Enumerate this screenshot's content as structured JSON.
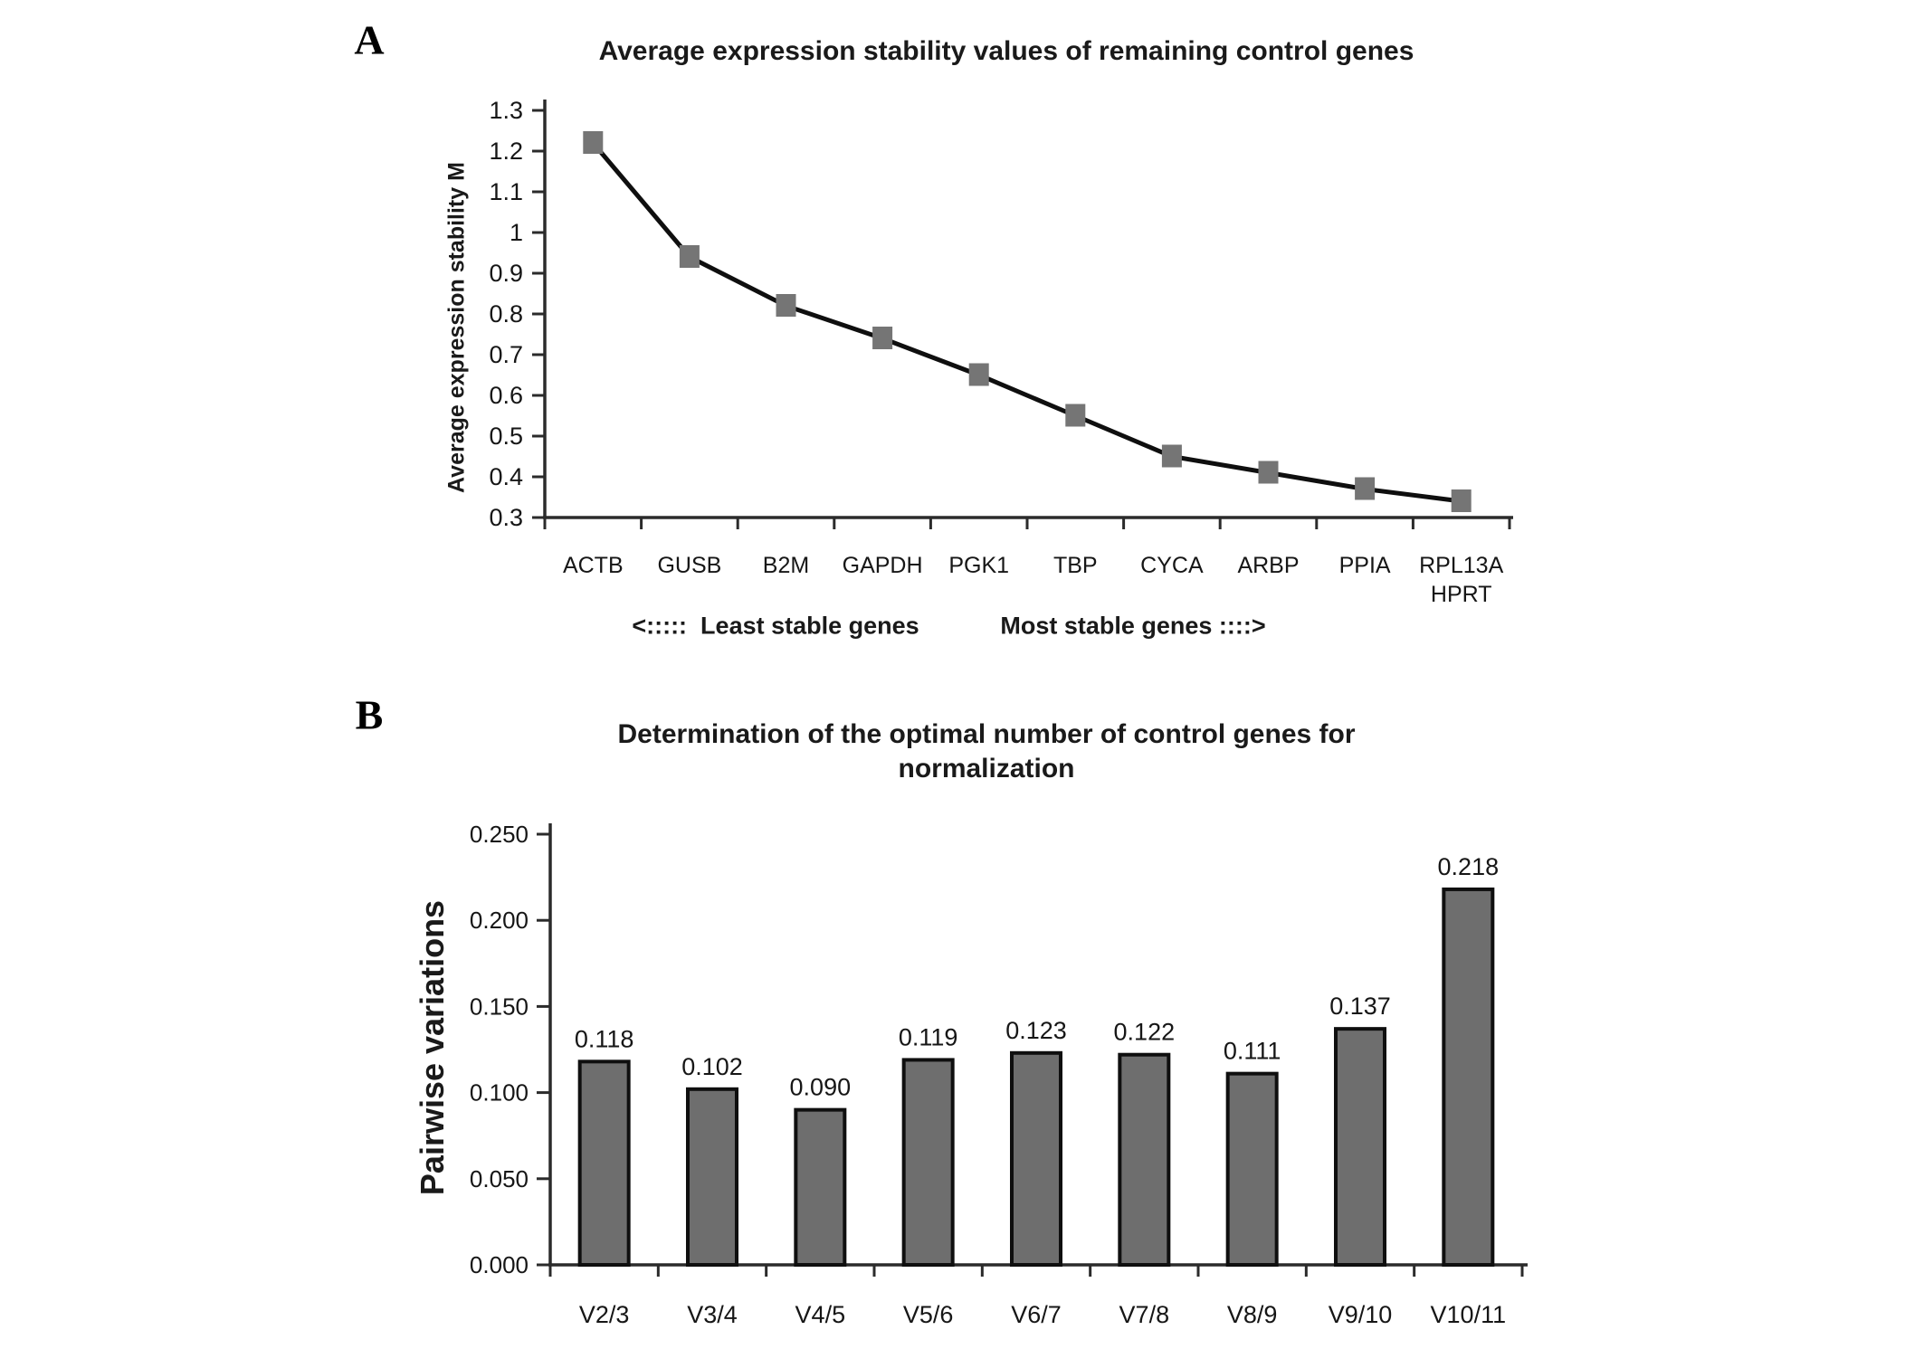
{
  "figure": {
    "panel_labels": [
      "A",
      "B"
    ]
  },
  "chart_data": [
    {
      "id": "expression-stability",
      "type": "line",
      "title": "Average expression stability values of remaining control genes",
      "xlabel": "",
      "ylabel": "Average expression stability M",
      "categories": [
        "ACTB",
        "GUSB",
        "B2M",
        "GAPDH",
        "PGK1",
        "TBP",
        "CYCA",
        "ARBP",
        "PPIA",
        "RPL13A"
      ],
      "categories_line2": [
        "",
        "",
        "",
        "",
        "",
        "",
        "",
        "",
        "",
        "HPRT"
      ],
      "values": [
        1.22,
        0.94,
        0.82,
        0.74,
        0.65,
        0.55,
        0.45,
        0.41,
        0.37,
        0.34
      ],
      "ylim": [
        0.3,
        1.3
      ],
      "ytick_labels": [
        "1.3",
        "1.2",
        "1.1",
        "1",
        "0.9",
        "0.8",
        "0.7",
        "0.6",
        "0.5",
        "0.4",
        "0.3"
      ],
      "grid": false,
      "legend": "none",
      "marker": "square",
      "marker_color": "#757575",
      "line_color": "#0f0f0f",
      "annotations": [
        "<:::::  Least stable genes",
        "Most stable genes ::::>"
      ]
    },
    {
      "id": "pairwise-variations",
      "type": "bar",
      "title": "Determination of the optimal number of control genes for normalization",
      "title_lines": [
        "Determination of the optimal number of control genes for",
        "normalization"
      ],
      "xlabel": "",
      "ylabel": "Pairwise variations",
      "categories": [
        "V2/3",
        "V3/4",
        "V4/5",
        "V5/6",
        "V6/7",
        "V7/8",
        "V8/9",
        "V9/10",
        "V10/11"
      ],
      "values": [
        0.118,
        0.102,
        0.09,
        0.119,
        0.123,
        0.122,
        0.111,
        0.137,
        0.218
      ],
      "value_labels": [
        "0.118",
        "0.102",
        "0.090",
        "0.119",
        "0.123",
        "0.122",
        "0.111",
        "0.137",
        "0.218"
      ],
      "ylim": [
        0.0,
        0.25
      ],
      "ytick_labels": [
        "0.000",
        "0.050",
        "0.100",
        "0.150",
        "0.200",
        "0.250"
      ],
      "grid": false,
      "legend": "none",
      "bar_color": "#6e6e6e",
      "bar_border": "#0f0f0f"
    }
  ],
  "colors": {
    "background": "#ffffff",
    "axis": "#2b2b2b",
    "text": "#161616"
  }
}
